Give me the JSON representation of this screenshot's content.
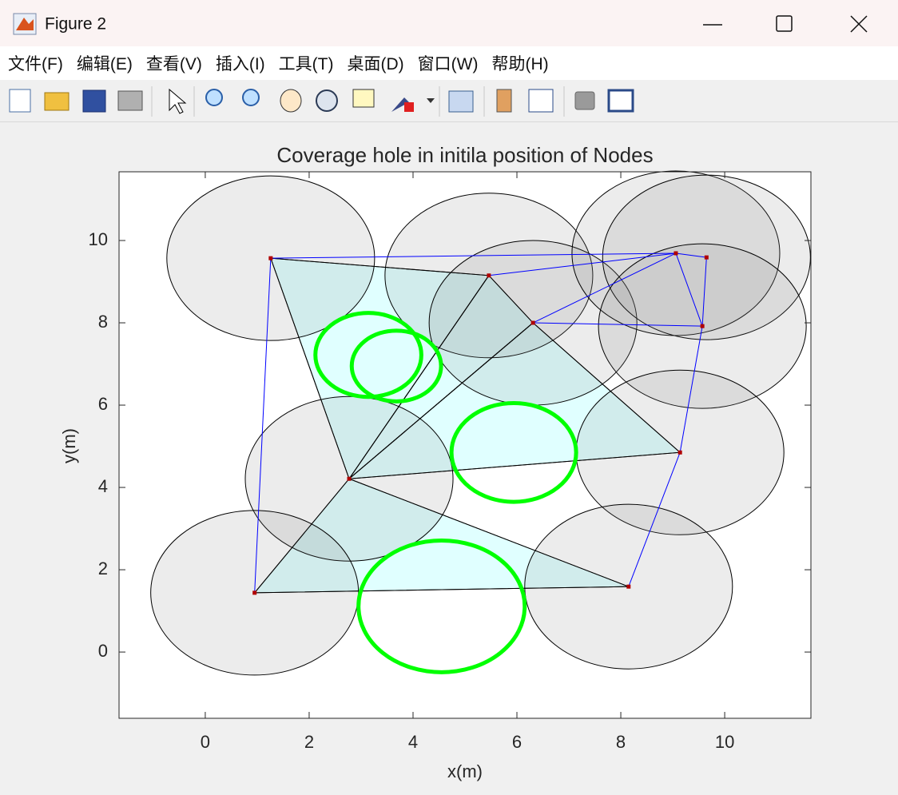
{
  "window": {
    "title": "Figure 2",
    "menu": [
      "文件(F)",
      "编辑(E)",
      "查看(V)",
      "插入(I)",
      "工具(T)",
      "桌面(D)",
      "窗口(W)",
      "帮助(H)"
    ]
  },
  "chart_data": {
    "type": "coverage",
    "title": "Coverage hole in initila position of Nodes",
    "xlabel": "x(m)",
    "ylabel": "y(m)",
    "xlim": [
      -1.66,
      11.66
    ],
    "ylim": [
      -1.61,
      11.67
    ],
    "xticks": [
      0,
      2,
      4,
      6,
      8,
      10
    ],
    "yticks": [
      0,
      2,
      4,
      6,
      8,
      10
    ],
    "nodes": {
      "x": [
        1.26,
        5.46,
        6.31,
        9.06,
        9.65,
        9.57,
        9.14,
        2.77,
        0.95,
        8.15
      ],
      "y": [
        9.57,
        9.15,
        8.0,
        9.69,
        9.59,
        7.92,
        4.85,
        4.21,
        1.44,
        1.59
      ],
      "color": "#b00000"
    },
    "sensing_radius": 2,
    "circle_color": "#808080",
    "triangles": [
      [
        0,
        1,
        7
      ],
      [
        1,
        2,
        7
      ],
      [
        2,
        6,
        7
      ],
      [
        7,
        8,
        9
      ]
    ],
    "triangle_color": "#e0ffff",
    "links": [
      [
        0,
        8
      ],
      [
        0,
        3
      ],
      [
        1,
        3
      ],
      [
        2,
        3
      ],
      [
        2,
        5
      ],
      [
        3,
        4
      ],
      [
        3,
        5
      ],
      [
        4,
        5
      ],
      [
        5,
        6
      ],
      [
        6,
        9
      ]
    ],
    "link_color": "#0000ff",
    "holes": {
      "x": [
        3.14,
        3.68,
        5.94,
        4.55
      ],
      "y": [
        7.22,
        6.95,
        4.85,
        1.11
      ],
      "r": [
        1.02,
        0.86,
        1.2,
        1.6
      ],
      "color": "#00ff00"
    }
  }
}
